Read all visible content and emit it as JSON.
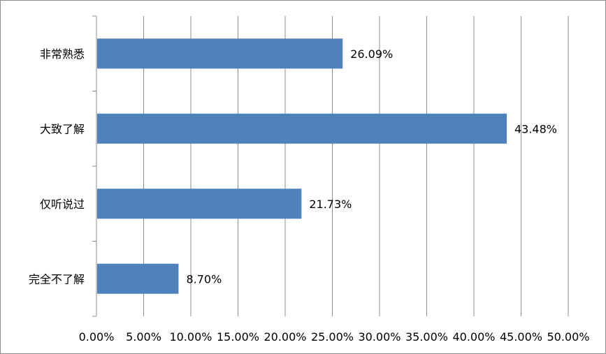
{
  "chart_data": {
    "type": "bar",
    "orientation": "horizontal",
    "categories": [
      "非常熟悉",
      "大致了解",
      "仅听说过",
      "完全不了解"
    ],
    "values": [
      26.09,
      43.48,
      21.73,
      8.7
    ],
    "data_labels": [
      "26.09%",
      "43.48%",
      "21.73%",
      "8.70%"
    ],
    "x_ticks": [
      "0.00%",
      "5.00%",
      "10.00%",
      "15.00%",
      "20.00%",
      "25.00%",
      "30.00%",
      "35.00%",
      "40.00%",
      "45.00%",
      "50.00%"
    ],
    "xlim": [
      0,
      50
    ],
    "grid": "vertical",
    "legend": "none",
    "bar_color": "#4f81bd",
    "grid_color": "#8c8c8c"
  }
}
